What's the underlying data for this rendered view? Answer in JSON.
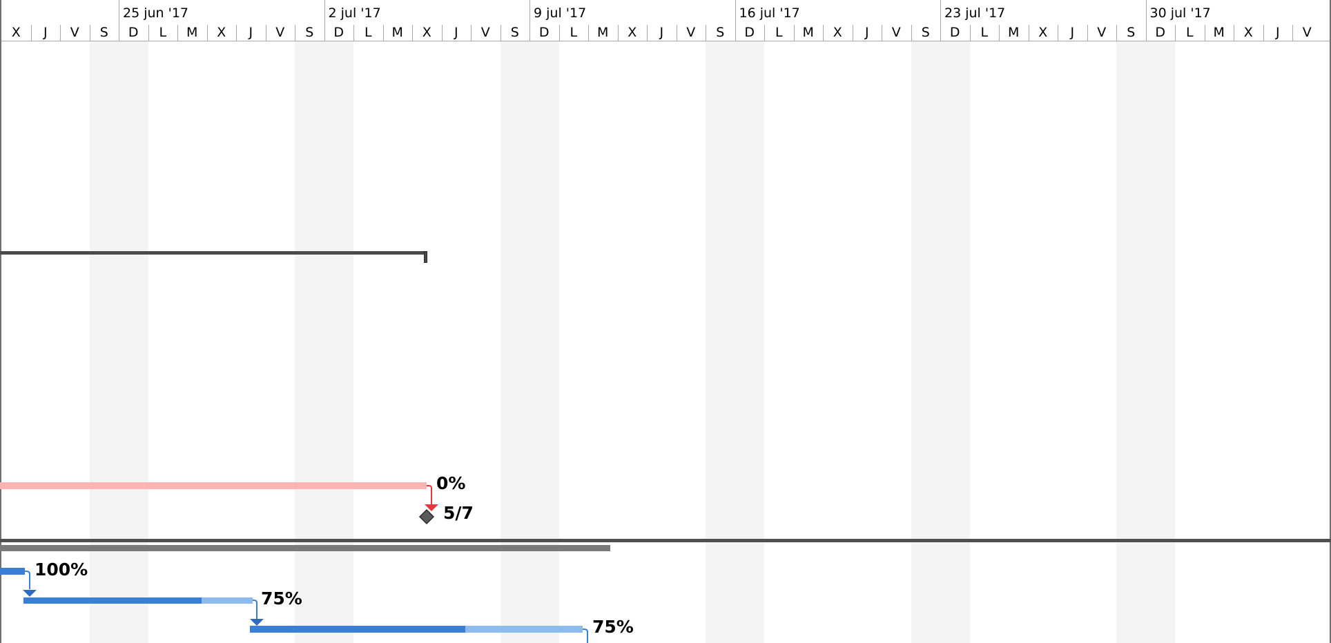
{
  "timeline": {
    "weeks": [
      "25 jun '17",
      "2 jul '17",
      "9 jul '17",
      "16 jul '17",
      "23 jul '17",
      "30 jul '17"
    ],
    "days": [
      "X",
      "J",
      "V",
      "S",
      "D",
      "L",
      "M",
      "X",
      "J",
      "V",
      "S",
      "D",
      "L",
      "M",
      "X",
      "J",
      "V",
      "S",
      "D",
      "L",
      "M",
      "X",
      "J",
      "V",
      "S",
      "D",
      "L",
      "M",
      "X",
      "J",
      "V",
      "S",
      "D",
      "L",
      "M",
      "X",
      "J",
      "V",
      "S",
      "D",
      "L",
      "M",
      "X",
      "J",
      "V"
    ]
  },
  "tasks": {
    "critical_task": {
      "progress_label": "0%"
    },
    "milestone": {
      "date_label": "5/7"
    },
    "subtask_1": {
      "progress_label": "100%"
    },
    "subtask_2": {
      "progress_label": "75%"
    },
    "subtask_3": {
      "progress_label": "75%"
    }
  },
  "colors": {
    "summary_bar": "#4a4a4a",
    "critical_bar": "#ffb3b3",
    "critical_link": "#e8363d",
    "task_bar": "#3a7fd5",
    "task_bar_remaining": "#8dbbee",
    "summary_gray": "#7a7a7a",
    "milestone": "#5a5a5a"
  }
}
